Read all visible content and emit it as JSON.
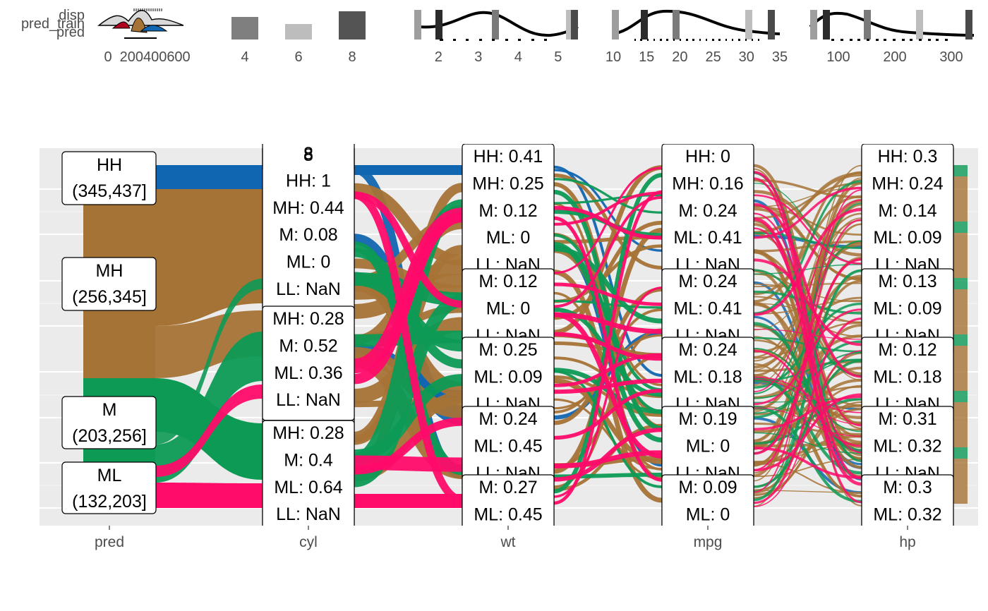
{
  "chart_data": {
    "type": "alluvial",
    "title": "",
    "series_colors": {
      "HH": "#1166b1",
      "MH": "#a67336",
      "M": "#0d9a55",
      "ML": "#ff0b6a"
    },
    "axes": [
      "pred",
      "cyl",
      "wt",
      "mpg",
      "hp"
    ],
    "pred_levels": [
      {
        "level": "HH",
        "range": "(345,437]"
      },
      {
        "level": "MH",
        "range": "(256,345]"
      },
      {
        "level": "M",
        "range": "(203,256]"
      },
      {
        "level": "ML",
        "range": "(132,203]"
      }
    ],
    "cyl_boxes": [
      {
        "lines": [
          "8",
          "HH: 1",
          "MH: 0.44",
          "M: 0.08",
          "ML: 0",
          "LL: NaN"
        ]
      },
      {
        "lines": [
          "MH: 0.28",
          "M: 0.52",
          "ML: 0.36",
          "LL: NaN"
        ]
      },
      {
        "lines": [
          "MH: 0.28",
          "M: 0.4",
          "ML: 0.64",
          "LL: NaN"
        ]
      }
    ],
    "wt_boxes": [
      {
        "lines": [
          "HH: 0.41",
          "MH: 0.25",
          "M: 0.12",
          "ML: 0",
          "LL: NaN"
        ]
      },
      {
        "lines": [
          "M: 0.12",
          "ML: 0",
          "LL: NaN"
        ]
      },
      {
        "lines": [
          "M: 0.25",
          "ML: 0.09",
          "LL: NaN"
        ]
      },
      {
        "lines": [
          "M: 0.24",
          "ML: 0.45",
          "LL: NaN"
        ]
      },
      {
        "lines": [
          "M: 0.27",
          "ML: 0.45"
        ]
      }
    ],
    "mpg_boxes": [
      {
        "lines": [
          "HH: 0",
          "MH: 0.16",
          "M: 0.24",
          "ML: 0.41",
          "LL: NaN"
        ]
      },
      {
        "lines": [
          "M: 0.24",
          "ML: 0.41",
          "LL: NaN"
        ]
      },
      {
        "lines": [
          "M: 0.24",
          "ML: 0.18",
          "LL: NaN"
        ]
      },
      {
        "lines": [
          "M: 0.19",
          "ML: 0",
          "LL: NaN"
        ]
      },
      {
        "lines": [
          "M: 0.09",
          "ML: 0"
        ]
      }
    ],
    "hp_boxes": [
      {
        "lines": [
          "HH: 0.3",
          "MH: 0.24",
          "M: 0.14",
          "ML: 0.09",
          "LL: NaN"
        ]
      },
      {
        "lines": [
          "M: 0.13",
          "ML: 0.09",
          "LL: NaN"
        ]
      },
      {
        "lines": [
          "M: 0.12",
          "ML: 0.18",
          "LL: NaN"
        ]
      },
      {
        "lines": [
          "M: 0.31",
          "ML: 0.32",
          "LL: NaN"
        ]
      },
      {
        "lines": [
          "M: 0.3",
          "ML: 0.32"
        ]
      }
    ],
    "marginals": {
      "disp": {
        "axis_labels": [
          "disp",
          "pred_train",
          "pred"
        ],
        "ticks": [
          0,
          200,
          400,
          600
        ]
      },
      "cyl": {
        "type": "bar",
        "ticks": [
          4,
          6,
          8
        ],
        "fill": {
          "4": "#7f7f7f",
          "6": "#bdbdbd",
          "8": "#545454"
        }
      },
      "wt": {
        "type": "density",
        "ticks": [
          2,
          3,
          4,
          5
        ],
        "xlim": [
          1.5,
          5.5
        ]
      },
      "mpg": {
        "type": "density",
        "ticks": [
          10,
          15,
          20,
          25,
          30,
          35
        ],
        "xlim": [
          10,
          35
        ]
      },
      "hp": {
        "type": "density",
        "ticks": [
          100,
          200,
          300
        ],
        "xlim": [
          50,
          340
        ]
      }
    }
  }
}
